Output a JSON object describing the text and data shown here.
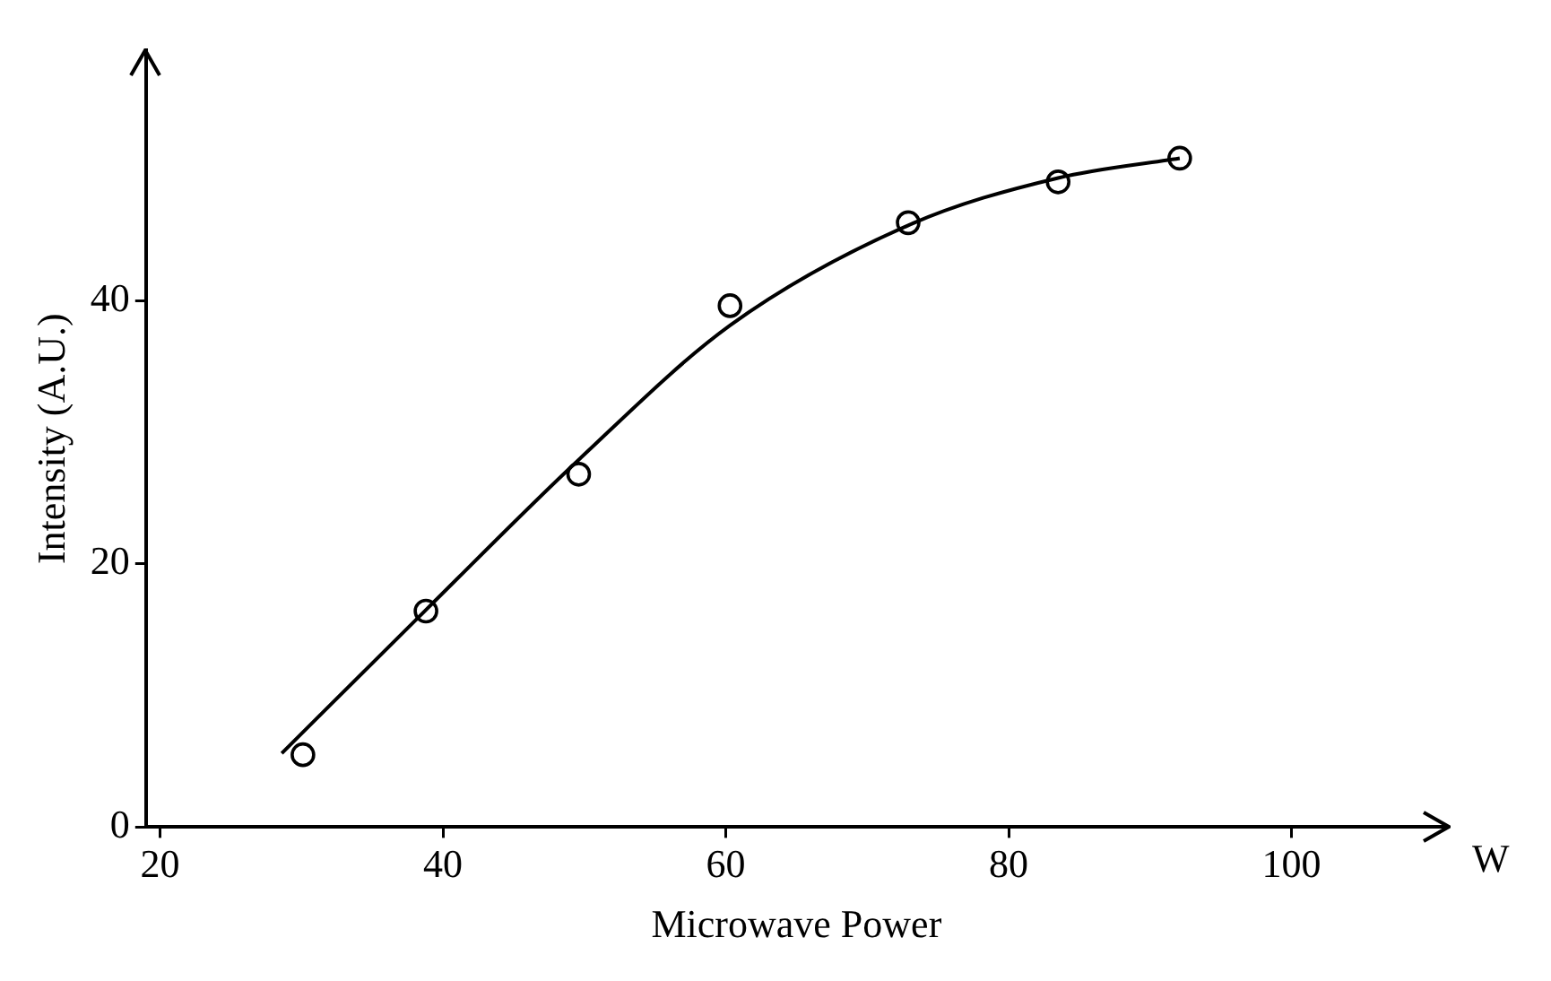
{
  "chart_data": {
    "type": "scatter",
    "xlabel": "Microwave Power",
    "ylabel": "Intensity (A.U.)",
    "annotations": [
      "W"
    ],
    "xlim": [
      19,
      111
    ],
    "xticks": [
      20,
      40,
      60,
      80,
      100
    ],
    "ylim": [
      0,
      59
    ],
    "yticks": [
      0,
      20,
      40
    ],
    "grid": false,
    "legend": false,
    "series": [
      {
        "type": "scatter",
        "color": "#000000",
        "marker": "circle",
        "x": [
          30.1,
          38.8,
          49.6,
          60.3,
          72.9,
          83.5,
          92.1
        ],
        "values": [
          5.5,
          16.4,
          26.8,
          39.6,
          45.9,
          49.0,
          50.8
        ]
      },
      {
        "type": "line",
        "color": "#000000",
        "marker": "none",
        "line_style": "solid",
        "x": [
          28.6,
          38.8,
          49.6,
          60.3,
          72.9,
          83.5,
          92.1
        ],
        "values": [
          5.6,
          16.5,
          27.9,
          38.1,
          45.7,
          49.3,
          50.8
        ]
      }
    ]
  }
}
